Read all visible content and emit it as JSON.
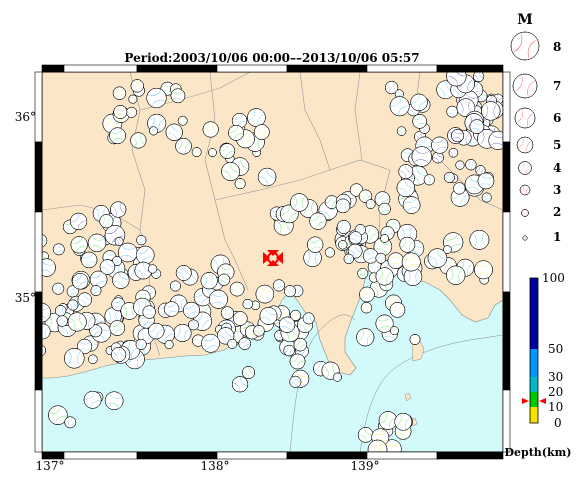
{
  "title": "Period:2003/10/06 00:00––2013/10/06 05:57",
  "axes": {
    "x_ticks": [
      "137°",
      "138°",
      "139°"
    ],
    "y_ticks": [
      "36°",
      "35°"
    ],
    "x_range_deg": [
      136.9,
      139.95
    ],
    "y_range_deg": [
      34.1,
      36.25
    ]
  },
  "magnitude_legend": {
    "label": "M",
    "levels": [
      "8",
      "7",
      "6",
      "5",
      "4",
      "3",
      "2",
      "1"
    ]
  },
  "depth_scale": {
    "label": "Depth(km)",
    "ticks": [
      "100",
      "50",
      "30",
      "20",
      "10",
      "0"
    ],
    "colors": {
      "0-10": "#f4e300",
      "10-20": "#00c800",
      "20-30": "#00b8c8",
      "30-50": "#0096ff",
      "50-100": "#0000a0"
    }
  },
  "colors": {
    "land": "#fbe6c8",
    "sea": "#d2fafa",
    "mechanism_red": "#ff0000"
  }
}
